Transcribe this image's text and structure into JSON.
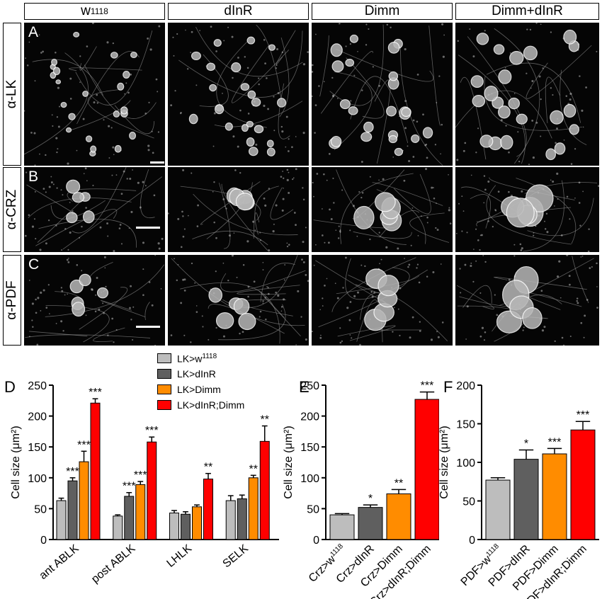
{
  "columns": [
    "w1118",
    "dInR",
    "Dimm",
    "Dimm+dInR"
  ],
  "rows": [
    {
      "letter": "A",
      "stain": "α-LK"
    },
    {
      "letter": "B",
      "stain": "α-CRZ"
    },
    {
      "letter": "C",
      "stain": "α-PDF"
    }
  ],
  "chart_data": [
    {
      "panel": "D",
      "type": "bar",
      "ylabel": "Cell size (μm²)",
      "ylim": [
        0,
        250
      ],
      "yticks": [
        0,
        50,
        100,
        150,
        200,
        250
      ],
      "categories": [
        "ant ABLK",
        "post ABLK",
        "LHLK",
        "SELK"
      ],
      "series": [
        {
          "name": "LK>w1118",
          "color": "#bdbdbd",
          "values": [
            63,
            38,
            43,
            63
          ],
          "errors": [
            4,
            2,
            4,
            8
          ],
          "sig": [
            "",
            "",
            "",
            ""
          ]
        },
        {
          "name": "LK>dInR",
          "color": "#5f5f5f",
          "values": [
            95,
            70,
            41,
            66
          ],
          "errors": [
            5,
            6,
            4,
            6
          ],
          "sig": [
            "***",
            "***",
            "",
            ""
          ]
        },
        {
          "name": "LK>Dimm",
          "color": "#ff8c00",
          "values": [
            126,
            89,
            53,
            100
          ],
          "errors": [
            17,
            5,
            3,
            4
          ],
          "sig": [
            "***",
            "***",
            "",
            "**"
          ]
        },
        {
          "name": "LK>dInR;Dimm",
          "color": "#ff0000",
          "values": [
            221,
            158,
            98,
            159
          ],
          "errors": [
            7,
            8,
            9,
            25
          ],
          "sig": [
            "***",
            "***",
            "**",
            "**"
          ]
        }
      ]
    },
    {
      "panel": "E",
      "type": "bar",
      "ylabel": "Cell size (μm²)",
      "ylim": [
        0,
        250
      ],
      "yticks": [
        0,
        50,
        100,
        150,
        200,
        250
      ],
      "categories": [
        "Crz>w1118",
        "Crz>dInR",
        "Crz>Dimm",
        "Crz>dInR;Dimm"
      ],
      "colors": [
        "#bdbdbd",
        "#5f5f5f",
        "#ff8c00",
        "#ff0000"
      ],
      "values": [
        40,
        52,
        74,
        227
      ],
      "errors": [
        2,
        4,
        7,
        12
      ],
      "sig": [
        "",
        "*",
        "**",
        "***"
      ]
    },
    {
      "panel": "F",
      "type": "bar",
      "ylabel": "Cell size (μm²)",
      "ylim": [
        0,
        200
      ],
      "yticks": [
        0,
        50,
        100,
        150,
        200
      ],
      "categories": [
        "PDF>w1118",
        "PDF>dInR",
        "PDF>Dimm",
        "PDF>dInR;Dimm"
      ],
      "colors": [
        "#bdbdbd",
        "#5f5f5f",
        "#ff8c00",
        "#ff0000"
      ],
      "values": [
        77,
        104,
        111,
        142
      ],
      "errors": [
        3,
        12,
        7,
        11
      ],
      "sig": [
        "",
        "*",
        "***",
        "***"
      ]
    }
  ]
}
